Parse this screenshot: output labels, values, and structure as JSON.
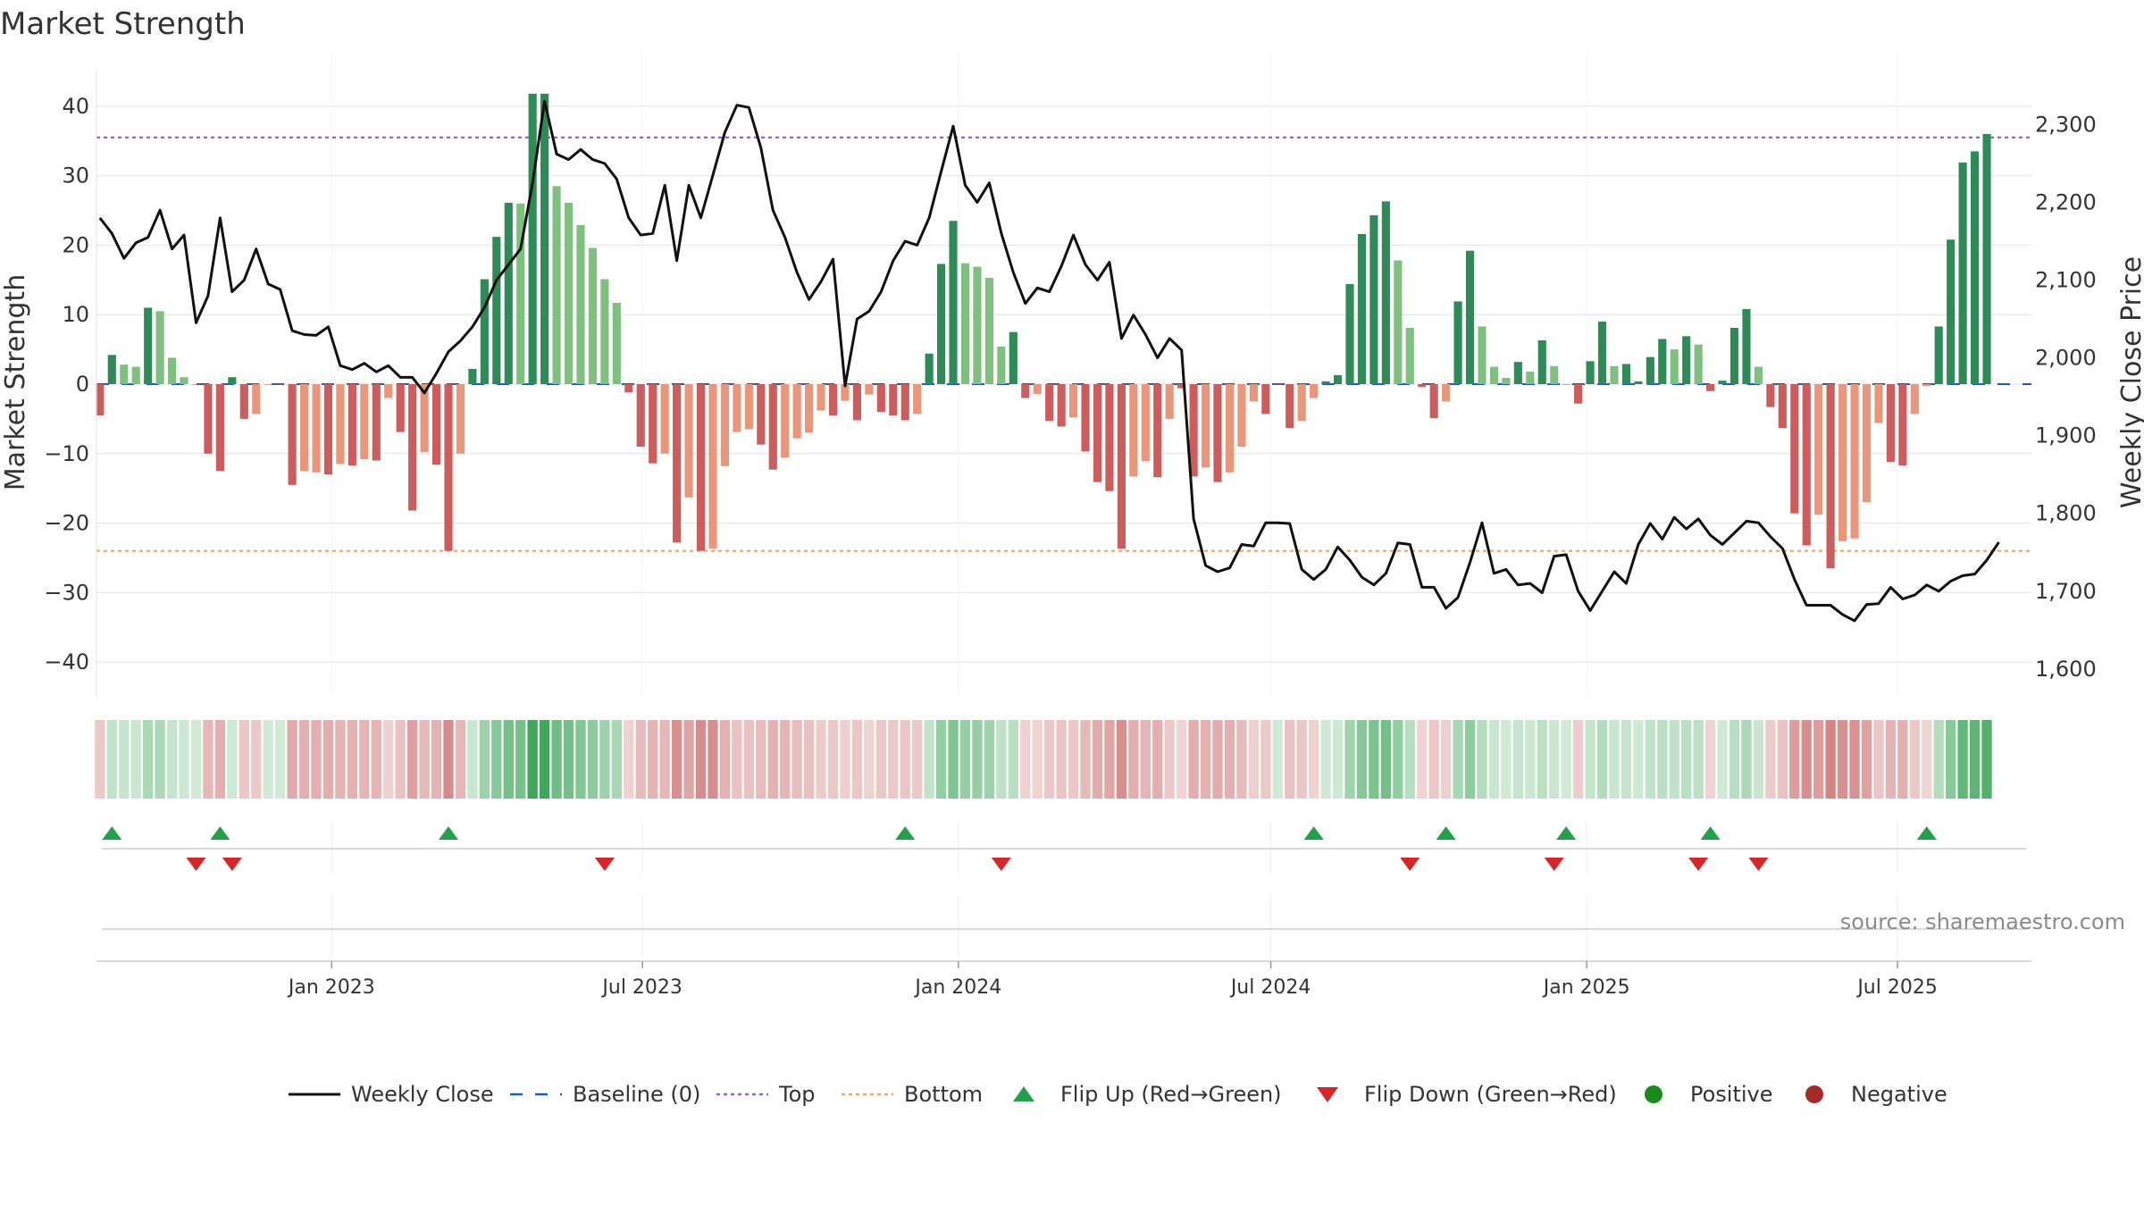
{
  "title": "Market Strength",
  "source": "source: sharemaestro.com",
  "chart_data": {
    "type": "bar",
    "y_left_label": "Market Strength",
    "y_left_ticks": [
      40,
      30,
      20,
      10,
      0,
      -10,
      -20,
      -30,
      -40
    ],
    "y_left_tick_labels": [
      "40",
      "30",
      "20",
      "10",
      "0",
      "−10",
      "−20",
      "−30",
      "−40"
    ],
    "y_left_range": [
      -45,
      45
    ],
    "y_right_label": "Weekly Close Price",
    "y_right_ticks": [
      2300,
      2200,
      2100,
      2000,
      1900,
      1800,
      1700,
      1600
    ],
    "y_right_tick_labels": [
      "2,300",
      "2,200",
      "2,100",
      "2,000",
      "1,900",
      "1,800",
      "1,700",
      "1,600"
    ],
    "y_right_range": [
      1564.2,
      2368.3
    ],
    "x_ticks": [
      "2023-01-01",
      "2023-07-01",
      "2024-01-01",
      "2024-07-01",
      "2025-01-01",
      "2025-07-01"
    ],
    "x_tick_labels": [
      "Jan 2023",
      "Jul 2023",
      "Jan 2024",
      "Jul 2024",
      "Jan 2025",
      "Jul 2025"
    ],
    "x_range": [
      "2022-08-17",
      "2025-09-17"
    ],
    "first_week": "2022-08-19",
    "top_level": 35.5,
    "bottom_level": -24,
    "grid": true,
    "colors": {
      "strong_up": "#2e8b57",
      "weak_up": "#7fbf7f",
      "strong_down": "#cd5c5c",
      "weak_down": "#e9967a",
      "line": "#111111",
      "baseline": "#1f5fa8",
      "top": "#9467bd",
      "bottom": "#f4a460",
      "flip_up": "#23a04a",
      "flip_down": "#d62728",
      "positive": "#1a8a1a",
      "negative": "#a52a2a"
    },
    "bars": [
      -4.5,
      4.2,
      2.8,
      2.5,
      11,
      10.5,
      3.8,
      1,
      0,
      -10,
      -12.5,
      1,
      -5,
      -4.3,
      0,
      0,
      -14.5,
      -12.5,
      -12.7,
      -13,
      -11.5,
      -11.7,
      -10.8,
      -11,
      -2,
      -6.9,
      -18.2,
      -9.8,
      -11.6,
      -24,
      -10,
      2.2,
      15.1,
      21.2,
      26.1,
      26,
      41.8,
      41.8,
      28.5,
      26.1,
      22.9,
      19.6,
      15.1,
      11.7,
      -1.2,
      -9,
      -11.4,
      -10,
      -22.8,
      -16.3,
      -24,
      -23.7,
      -11.8,
      -6.9,
      -6.5,
      -8.7,
      -12.3,
      -10.6,
      -7.8,
      -7,
      -3.8,
      -4.5,
      -2.4,
      -5.2,
      -1.5,
      -4,
      -4.5,
      -5.2,
      -4.3,
      4.4,
      17.3,
      23.5,
      17.4,
      16.9,
      15.3,
      5.4,
      7.5,
      -2,
      -1.4,
      -5.3,
      -6.1,
      -4.8,
      -9.7,
      -14.1,
      -15.4,
      -23.7,
      -13.3,
      -11.1,
      -13.4,
      -5,
      -0.6,
      -13.3,
      -12,
      -14.1,
      -12.7,
      -9,
      -2.5,
      -4.3,
      0,
      -6.3,
      -5.3,
      -2,
      0.4,
      1.3,
      14.4,
      21.6,
      24.3,
      26.3,
      17.8,
      8.1,
      -0.4,
      -4.9,
      -2.5,
      11.9,
      19.2,
      8.3,
      2.5,
      0.9,
      3.2,
      1.8,
      6.3,
      2.6,
      0,
      -2.8,
      3.3,
      9,
      2.6,
      2.9,
      0.4,
      3.9,
      6.5,
      5,
      6.9,
      5.7,
      -1,
      0.5,
      8.1,
      10.8,
      2.5,
      -3.3,
      -6.3,
      -18.6,
      -23.2,
      -18.8,
      -26.5,
      -22.6,
      -22.2,
      -17,
      -5.6,
      -11.2,
      -11.7,
      -4.3,
      -0.3,
      8.3,
      20.8,
      31.9,
      33.5,
      36
    ],
    "strength_colors": [
      "SD",
      "SU",
      "WU",
      "WU",
      "SU",
      "WU",
      "WU",
      "WU",
      "SD",
      "SD",
      "SD",
      "SU",
      "SD",
      "WD",
      "SD",
      "SD",
      "SD",
      "WD",
      "WD",
      "SD",
      "WD",
      "SD",
      "WD",
      "SD",
      "WD",
      "SD",
      "SD",
      "WD",
      "SD",
      "SD",
      "WD",
      "SU",
      "SU",
      "SU",
      "SU",
      "WU",
      "SU",
      "SU",
      "WU",
      "WU",
      "WU",
      "WU",
      "WU",
      "WU",
      "SD",
      "SD",
      "SD",
      "WD",
      "SD",
      "WD",
      "SD",
      "WD",
      "WD",
      "WD",
      "WD",
      "SD",
      "SD",
      "WD",
      "WD",
      "WD",
      "WD",
      "SD",
      "WD",
      "SD",
      "WD",
      "SD",
      "SD",
      "SD",
      "WD",
      "SU",
      "SU",
      "SU",
      "WU",
      "WU",
      "WU",
      "WU",
      "SU",
      "SD",
      "WD",
      "SD",
      "SD",
      "WD",
      "SD",
      "SD",
      "SD",
      "SD",
      "WD",
      "WD",
      "SD",
      "WD",
      "SD",
      "SD",
      "WD",
      "SD",
      "WD",
      "WD",
      "WD",
      "SD",
      "SD",
      "SD",
      "WD",
      "WD",
      "SU",
      "SU",
      "SU",
      "SU",
      "SU",
      "SU",
      "WU",
      "WU",
      "SD",
      "SD",
      "WD",
      "SU",
      "SU",
      "WU",
      "WU",
      "WU",
      "SU",
      "WU",
      "SU",
      "WU",
      "SU",
      "SD",
      "SU",
      "SU",
      "WU",
      "SU",
      "SU",
      "SU",
      "SU",
      "WU",
      "SU",
      "WU",
      "SD",
      "SU",
      "SU",
      "SU",
      "WU",
      "SD",
      "SD",
      "SD",
      "SD",
      "WD",
      "SD",
      "WD",
      "WD",
      "WD",
      "WD",
      "SD",
      "SD",
      "WD",
      "WD",
      "SU",
      "SU",
      "SU",
      "SU",
      "SU"
    ],
    "weekly_close": [
      2180,
      2160,
      2128,
      2148,
      2155,
      2190,
      2140,
      2158,
      2045,
      2080,
      2180,
      2085,
      2100,
      2140,
      2095,
      2088,
      2035,
      2030,
      2029,
      2040,
      1990,
      1985,
      1993,
      1982,
      1990,
      1975,
      1975,
      1955,
      1980,
      2008,
      2022,
      2040,
      2065,
      2100,
      2120,
      2140,
      2225,
      2330,
      2262,
      2255,
      2268,
      2255,
      2250,
      2230,
      2180,
      2158,
      2160,
      2222,
      2125,
      2222,
      2180,
      2235,
      2290,
      2325,
      2322,
      2270,
      2190,
      2155,
      2110,
      2075,
      2098,
      2127,
      1964,
      2050,
      2060,
      2085,
      2125,
      2150,
      2145,
      2180,
      2240,
      2298,
      2222,
      2200,
      2225,
      2160,
      2110,
      2070,
      2090,
      2085,
      2118,
      2158,
      2120,
      2100,
      2123,
      2025,
      2055,
      2030,
      2000,
      2025,
      2010,
      1793,
      1733,
      1725,
      1730,
      1760,
      1758,
      1788,
      1788,
      1787,
      1728,
      1715,
      1728,
      1757,
      1740,
      1718,
      1708,
      1723,
      1762,
      1760,
      1705,
      1705,
      1678,
      1692,
      1737,
      1788,
      1723,
      1728,
      1708,
      1710,
      1698,
      1745,
      1747,
      1700,
      1675,
      1700,
      1725,
      1710,
      1760,
      1787,
      1767,
      1795,
      1780,
      1793,
      1772,
      1760,
      1775,
      1790,
      1788,
      1770,
      1755,
      1715,
      1682,
      1682,
      1682,
      1670,
      1662,
      1683,
      1684,
      1705,
      1690,
      1695,
      1708,
      1700,
      1713,
      1720,
      1722,
      1740,
      1763
    ],
    "flip_up_weeks": [
      1,
      10,
      29,
      67,
      101,
      112,
      122,
      134,
      152
    ],
    "flip_down_weeks": [
      8,
      11,
      42,
      75,
      109,
      121,
      133,
      138
    ],
    "legend": [
      {
        "label": "Weekly Close",
        "symbol": "line"
      },
      {
        "label": "Baseline (0)",
        "symbol": "dash"
      },
      {
        "label": "Top",
        "symbol": "dot"
      },
      {
        "label": "Bottom",
        "symbol": "dot"
      },
      {
        "label": "Flip Up (Red→Green)",
        "symbol": "triangle-up"
      },
      {
        "label": "Flip Down (Green→Red)",
        "symbol": "triangle-down"
      },
      {
        "label": "Positive",
        "symbol": "circle"
      },
      {
        "label": "Negative",
        "symbol": "circle"
      }
    ]
  }
}
